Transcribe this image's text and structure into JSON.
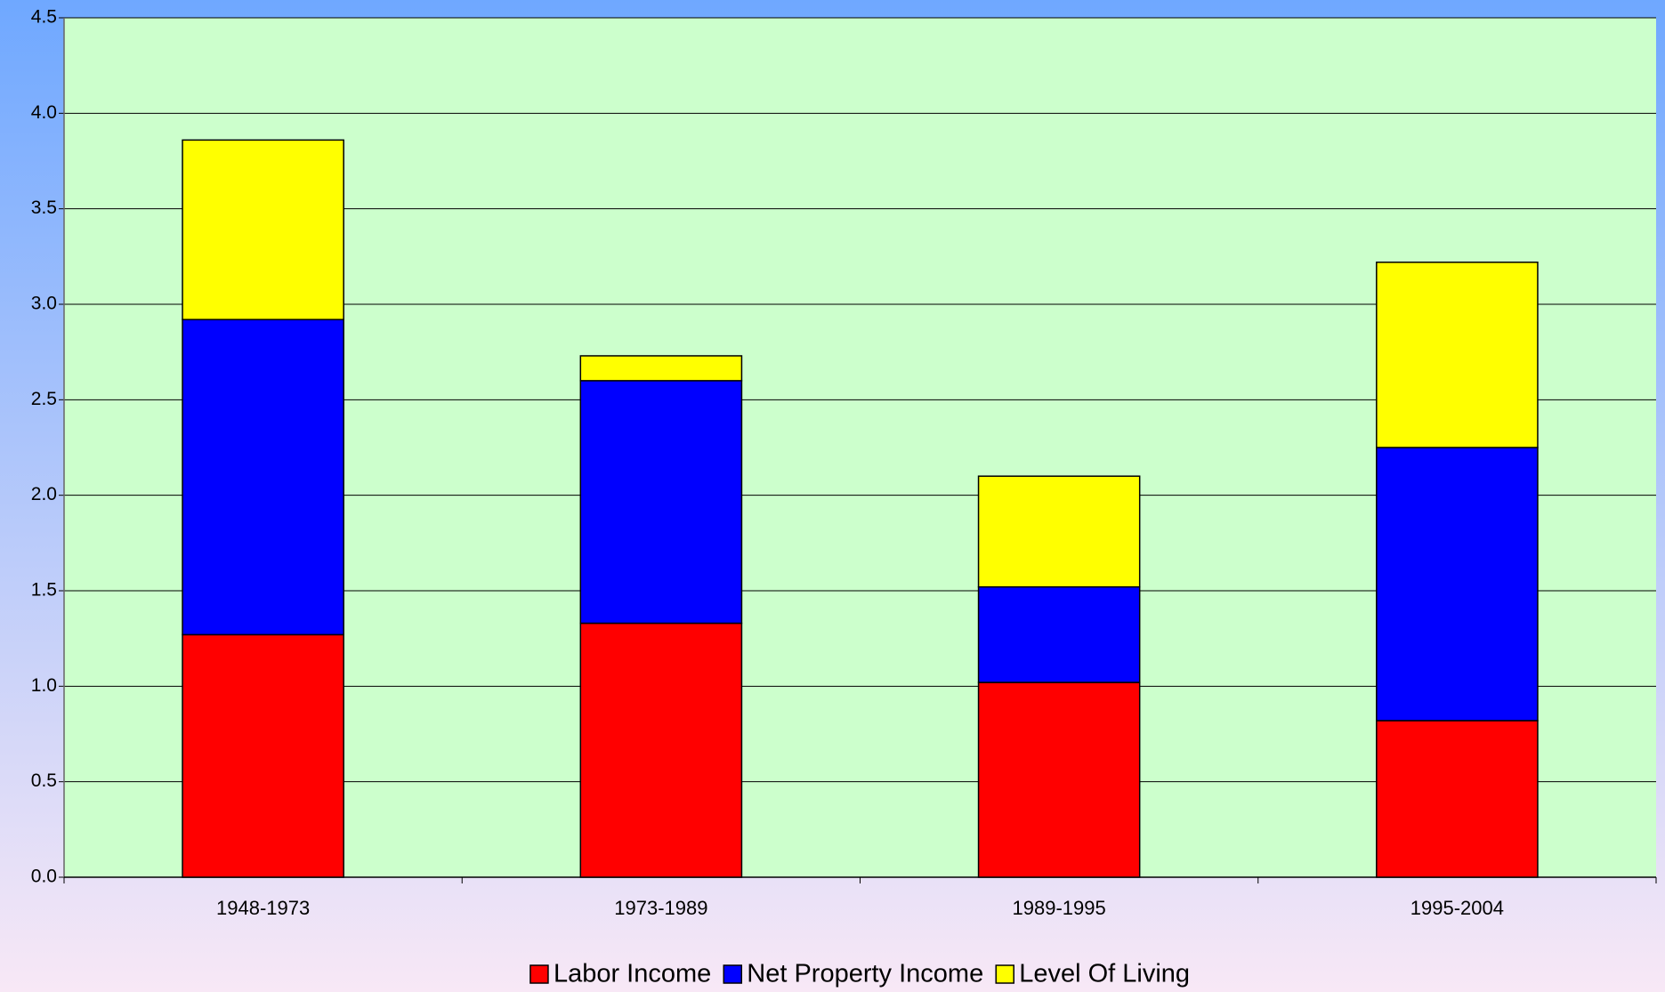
{
  "chart_data": {
    "type": "stacked-bar",
    "categories": [
      "1948-1973",
      "1973-1989",
      "1989-1995",
      "1995-2004"
    ],
    "series": [
      {
        "name": "Labor Income",
        "color": "#ff0000",
        "values": [
          1.27,
          1.33,
          1.02,
          0.82
        ]
      },
      {
        "name": "Net Property Income",
        "color": "#0000ff",
        "values": [
          1.65,
          1.27,
          0.5,
          1.43
        ]
      },
      {
        "name": "Level Of Living",
        "color": "#ffff00",
        "values": [
          0.94,
          0.13,
          0.58,
          0.97
        ]
      }
    ],
    "ylim": [
      0,
      4.5
    ],
    "yticks": [
      {
        "value": 0,
        "label": "0.0"
      },
      0.5,
      {
        "value": 1,
        "label": "1.0"
      },
      1.5,
      {
        "value": 2,
        "label": "2.0"
      },
      2.5,
      {
        "value": 3,
        "label": "3.0"
      },
      3.5,
      {
        "value": 4,
        "label": "4.0"
      },
      4.5
    ],
    "grid": true,
    "legend": "bottom"
  }
}
